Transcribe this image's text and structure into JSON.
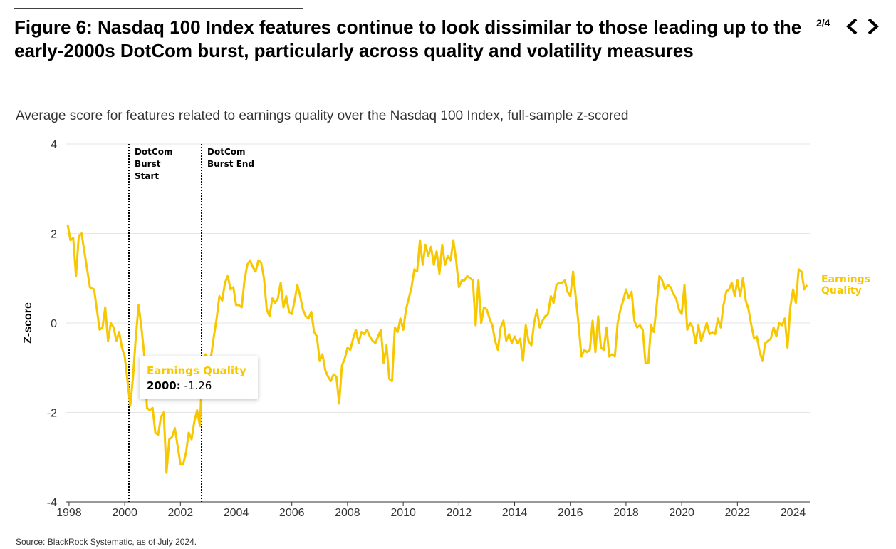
{
  "page_indicator": "2/4",
  "chart_data": {
    "type": "line",
    "title": "Figure 6: Nasdaq 100 Index features continue to look dissimilar to those leading up to the early-2000s DotCom burst, particularly across quality and volatility measures",
    "subtitle": "Average score for features related to earnings quality over the Nasdaq 100 Index, full-sample z-scored",
    "y_label": "Z-score",
    "source": "Source: BlackRock Systematic, as of July 2024.",
    "xlim": [
      1997.9,
      2024.6
    ],
    "xticks": [
      1998,
      2000,
      2002,
      2004,
      2006,
      2008,
      2010,
      2012,
      2014,
      2016,
      2018,
      2020,
      2022,
      2024
    ],
    "ylim": [
      -4,
      4
    ],
    "yticks": [
      -4,
      -2,
      0,
      2,
      4
    ],
    "grid": true,
    "annotations": [
      {
        "x": 2000.15,
        "label": "DotCom Burst Start"
      },
      {
        "x": 2002.76,
        "label": "DotCom Burst End"
      }
    ],
    "tooltip": {
      "label": "2000:",
      "value": -1.26
    },
    "x": [
      1997.95,
      1998.05,
      1998.15,
      1998.25,
      1998.35,
      1998.45,
      1998.6,
      1998.75,
      1998.9,
      1999.0,
      1999.1,
      1999.2,
      1999.3,
      1999.4,
      1999.5,
      1999.6,
      1999.7,
      1999.8,
      1999.9,
      2000.0,
      2000.1,
      2000.2,
      2000.3,
      2000.4,
      2000.5,
      2000.6,
      2000.7,
      2000.8,
      2000.9,
      2001.0,
      2001.1,
      2001.2,
      2001.3,
      2001.4,
      2001.5,
      2001.6,
      2001.7,
      2001.8,
      2001.9,
      2002.0,
      2002.1,
      2002.2,
      2002.3,
      2002.4,
      2002.5,
      2002.6,
      2002.7,
      2002.8,
      2002.9,
      2003.0,
      2003.1,
      2003.2,
      2003.3,
      2003.4,
      2003.5,
      2003.6,
      2003.7,
      2003.8,
      2003.9,
      2004.0,
      2004.1,
      2004.2,
      2004.3,
      2004.4,
      2004.5,
      2004.6,
      2004.7,
      2004.8,
      2004.9,
      2005.0,
      2005.1,
      2005.2,
      2005.3,
      2005.4,
      2005.5,
      2005.6,
      2005.7,
      2005.8,
      2005.9,
      2006.0,
      2006.1,
      2006.2,
      2006.3,
      2006.4,
      2006.5,
      2006.6,
      2006.7,
      2006.8,
      2006.9,
      2007.0,
      2007.1,
      2007.2,
      2007.3,
      2007.4,
      2007.5,
      2007.6,
      2007.7,
      2007.8,
      2007.9,
      2008.0,
      2008.1,
      2008.2,
      2008.3,
      2008.4,
      2008.5,
      2008.6,
      2008.7,
      2008.8,
      2008.9,
      2009.0,
      2009.1,
      2009.2,
      2009.3,
      2009.4,
      2009.5,
      2009.6,
      2009.7,
      2009.8,
      2009.9,
      2010.0,
      2010.1,
      2010.2,
      2010.3,
      2010.4,
      2010.5,
      2010.6,
      2010.7,
      2010.8,
      2010.9,
      2011.0,
      2011.1,
      2011.2,
      2011.3,
      2011.4,
      2011.5,
      2011.6,
      2011.7,
      2011.8,
      2011.9,
      2012.0,
      2012.1,
      2012.2,
      2012.3,
      2012.4,
      2012.5,
      2012.6,
      2012.7,
      2012.8,
      2012.9,
      2013.0,
      2013.1,
      2013.2,
      2013.3,
      2013.4,
      2013.5,
      2013.6,
      2013.7,
      2013.8,
      2013.9,
      2014.0,
      2014.1,
      2014.2,
      2014.3,
      2014.4,
      2014.5,
      2014.6,
      2014.7,
      2014.8,
      2014.9,
      2015.0,
      2015.1,
      2015.2,
      2015.3,
      2015.4,
      2015.5,
      2015.6,
      2015.7,
      2015.8,
      2015.9,
      2016.0,
      2016.1,
      2016.2,
      2016.3,
      2016.4,
      2016.5,
      2016.6,
      2016.7,
      2016.8,
      2016.9,
      2017.0,
      2017.1,
      2017.2,
      2017.3,
      2017.4,
      2017.5,
      2017.6,
      2017.7,
      2017.8,
      2017.9,
      2018.0,
      2018.1,
      2018.2,
      2018.3,
      2018.4,
      2018.5,
      2018.6,
      2018.7,
      2018.8,
      2018.9,
      2019.0,
      2019.1,
      2019.2,
      2019.3,
      2019.4,
      2019.5,
      2019.6,
      2019.7,
      2019.8,
      2019.9,
      2020.0,
      2020.1,
      2020.2,
      2020.3,
      2020.4,
      2020.5,
      2020.6,
      2020.7,
      2020.8,
      2020.9,
      2021.0,
      2021.1,
      2021.2,
      2021.3,
      2021.4,
      2021.5,
      2021.6,
      2021.7,
      2021.8,
      2021.9,
      2022.0,
      2022.1,
      2022.2,
      2022.3,
      2022.4,
      2022.5,
      2022.6,
      2022.7,
      2022.8,
      2022.9,
      2023.0,
      2023.1,
      2023.2,
      2023.3,
      2023.4,
      2023.5,
      2023.6,
      2023.7,
      2023.8,
      2023.9,
      2024.0,
      2024.1,
      2024.2,
      2024.3,
      2024.4,
      2024.5
    ],
    "series": [
      {
        "name": "Earnings Quality",
        "color": "#f7c800",
        "values": [
          2.2,
          1.85,
          1.9,
          1.05,
          1.95,
          2.0,
          1.4,
          0.8,
          0.75,
          0.3,
          -0.15,
          -0.1,
          0.35,
          -0.4,
          0.0,
          -0.1,
          -0.4,
          -0.2,
          -0.55,
          -0.75,
          -1.3,
          -1.85,
          -1.2,
          -0.3,
          0.4,
          -0.1,
          -0.7,
          -1.9,
          -1.95,
          -1.9,
          -2.45,
          -2.5,
          -2.1,
          -2.0,
          -3.35,
          -2.6,
          -2.55,
          -2.35,
          -2.75,
          -3.15,
          -3.15,
          -2.9,
          -2.45,
          -2.6,
          -2.2,
          -1.95,
          -2.3,
          -0.8,
          -0.7,
          -0.8,
          -0.75,
          -0.3,
          0.1,
          0.6,
          0.5,
          0.9,
          1.05,
          0.75,
          0.8,
          0.4,
          0.4,
          0.35,
          0.95,
          1.3,
          1.4,
          1.25,
          1.15,
          1.4,
          1.35,
          1.0,
          0.3,
          0.15,
          0.55,
          0.45,
          0.55,
          0.9,
          0.35,
          0.6,
          0.25,
          0.2,
          0.5,
          0.85,
          0.6,
          0.3,
          0.15,
          0.1,
          0.25,
          -0.2,
          -0.3,
          -0.85,
          -0.7,
          -1.05,
          -1.2,
          -1.3,
          -1.15,
          -1.2,
          -1.8,
          -0.95,
          -0.8,
          -0.55,
          -0.6,
          -0.35,
          -0.15,
          -0.45,
          -0.2,
          -0.25,
          -0.15,
          -0.3,
          -0.4,
          -0.45,
          -0.3,
          -0.15,
          -0.9,
          -0.5,
          -1.25,
          -1.3,
          -0.1,
          -0.2,
          0.1,
          -0.15,
          0.3,
          0.55,
          0.8,
          1.2,
          1.15,
          1.85,
          1.3,
          1.75,
          1.5,
          1.7,
          1.3,
          1.6,
          1.1,
          1.75,
          1.3,
          1.5,
          1.4,
          1.85,
          1.4,
          0.8,
          0.95,
          0.95,
          1.05,
          1.0,
          0.95,
          -0.05,
          0.95,
          0.0,
          0.35,
          0.3,
          0.1,
          -0.05,
          -0.4,
          -0.6,
          -0.1,
          0.05,
          -0.4,
          -0.25,
          -0.45,
          -0.3,
          -0.45,
          -0.35,
          -0.85,
          -0.05,
          -0.4,
          -0.5,
          0.0,
          0.3,
          -0.1,
          0.05,
          0.15,
          0.2,
          0.6,
          0.45,
          0.85,
          0.9,
          0.9,
          0.95,
          0.7,
          0.6,
          1.15,
          0.55,
          -0.05,
          -0.75,
          -0.6,
          -0.65,
          -0.6,
          0.05,
          -0.65,
          0.15,
          -0.55,
          -0.6,
          -0.1,
          -0.75,
          -0.7,
          -0.75,
          0.0,
          0.3,
          0.5,
          0.75,
          0.55,
          0.7,
          0.05,
          -0.1,
          -0.05,
          -0.15,
          -0.9,
          -0.9,
          -0.05,
          -0.2,
          0.4,
          1.05,
          0.95,
          0.75,
          0.85,
          0.8,
          0.65,
          0.55,
          0.3,
          0.2,
          0.85,
          -0.15,
          0.0,
          -0.1,
          -0.45,
          -0.05,
          -0.4,
          -0.2,
          0.0,
          -0.25,
          -0.2,
          -0.25,
          0.1,
          -0.1,
          0.4,
          0.7,
          0.75,
          0.9,
          0.6,
          0.95,
          0.6,
          1.0,
          0.5,
          0.3,
          -0.05,
          -0.35,
          -0.3,
          -0.65,
          -0.85,
          -0.45,
          -0.4,
          -0.35,
          -0.1,
          -0.3,
          0.0,
          -0.05,
          0.1,
          -0.55,
          0.35,
          0.75,
          0.45,
          1.2,
          1.15,
          0.75,
          0.85
        ]
      }
    ]
  }
}
